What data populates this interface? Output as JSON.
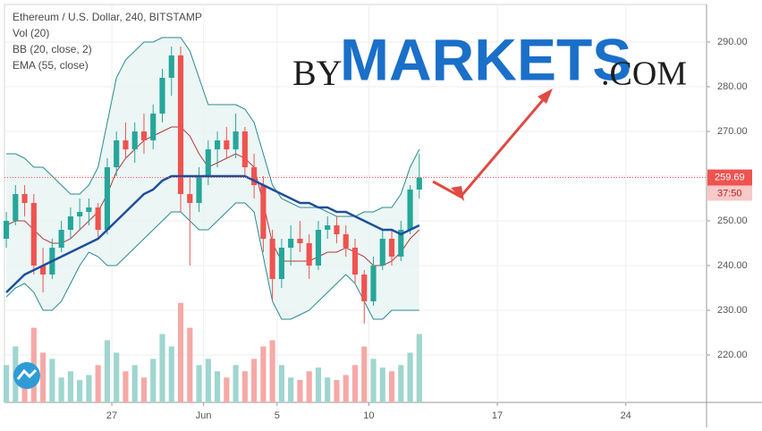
{
  "chart_data": {
    "type": "candlestick",
    "title": "Ethereum / U.S. Dollar, 240, BITSTAMP",
    "indicators": [
      "Vol (20)",
      "BB (20, close, 2)",
      "EMA (55, close)"
    ],
    "x": [
      21.25,
      21.75,
      22.25,
      22.75,
      23.25,
      23.75,
      24.25,
      24.75,
      25.25,
      25.75,
      26.25,
      26.75,
      27.25,
      27.75,
      28.25,
      28.75,
      29.25,
      29.75,
      30.25,
      30.75,
      31.25,
      31.75,
      32.25,
      32.75,
      33.25,
      33.75,
      34.25,
      34.75,
      35.25,
      35.75,
      36.25,
      36.75,
      37.25,
      37.75,
      38.25,
      38.75,
      39.25,
      39.75,
      40.25,
      40.75,
      41.25,
      41.75,
      42.25,
      42.75,
      43.25,
      43.75
    ],
    "open": [
      246,
      250,
      256,
      254,
      240,
      238,
      244,
      248,
      251,
      252,
      253,
      248,
      262,
      268,
      266,
      270,
      268,
      274,
      282,
      287,
      256,
      254,
      260,
      266,
      268,
      266,
      270,
      262,
      258,
      246,
      237,
      244,
      246,
      245,
      240,
      248,
      249,
      247,
      244,
      238,
      232,
      240,
      246,
      242,
      248,
      257
    ],
    "high": [
      252,
      258,
      258,
      256,
      244,
      246,
      250,
      253,
      255,
      255,
      254,
      264,
      270,
      272,
      272,
      274,
      276,
      284,
      289,
      289,
      260,
      262,
      268,
      270,
      271,
      274,
      271,
      265,
      260,
      248,
      246,
      249,
      250,
      247,
      250,
      251,
      251,
      249,
      246,
      239,
      242,
      248,
      248,
      250,
      258,
      265
    ],
    "low": [
      244,
      249,
      251,
      238,
      234,
      237,
      243,
      246,
      248,
      249,
      246,
      247,
      260,
      264,
      263,
      265,
      266,
      272,
      278,
      252,
      240,
      252,
      258,
      262,
      264,
      264,
      260,
      255,
      243,
      232,
      235,
      240,
      243,
      237,
      239,
      246,
      245,
      242,
      236,
      227,
      231,
      239,
      240,
      241,
      247,
      255
    ],
    "close": [
      250,
      256,
      254,
      240,
      238,
      244,
      248,
      251,
      252,
      253,
      248,
      262,
      268,
      266,
      270,
      268,
      274,
      282,
      287,
      256,
      254,
      260,
      266,
      268,
      266,
      270,
      262,
      258,
      246,
      237,
      244,
      246,
      245,
      240,
      248,
      249,
      247,
      244,
      238,
      232,
      240,
      246,
      242,
      248,
      257,
      259.69
    ],
    "volume": [
      30,
      45,
      25,
      60,
      40,
      35,
      20,
      25,
      18,
      22,
      30,
      50,
      40,
      25,
      30,
      20,
      35,
      55,
      45,
      80,
      60,
      30,
      35,
      25,
      20,
      30,
      25,
      35,
      45,
      50,
      30,
      20,
      18,
      25,
      28,
      20,
      18,
      22,
      30,
      45,
      35,
      28,
      25,
      30,
      40,
      55
    ],
    "vlim": [
      0,
      320
    ],
    "ema": [
      234,
      236,
      238,
      239,
      240,
      241,
      242,
      243,
      244,
      245,
      246,
      248,
      250,
      252,
      254,
      256,
      257,
      259,
      260,
      260,
      260,
      260,
      260,
      260,
      260,
      260,
      260,
      259,
      258,
      257,
      256,
      255,
      254,
      254,
      253,
      253,
      252,
      252,
      251,
      250,
      249,
      248,
      248,
      247,
      248,
      249
    ],
    "bb_upper": [
      265,
      265,
      264,
      262,
      262,
      260,
      258,
      256,
      256,
      258,
      262,
      272,
      282,
      286,
      288,
      290,
      290,
      291,
      291,
      291,
      288,
      282,
      276,
      276,
      276,
      276,
      275,
      272,
      265,
      258,
      255,
      254,
      253,
      253,
      253,
      252,
      251,
      251,
      251,
      252,
      252,
      253,
      253,
      256,
      262,
      266
    ],
    "bb_middle": [
      249,
      250,
      250,
      248,
      246,
      245,
      245,
      246,
      248,
      250,
      252,
      256,
      261,
      264,
      266,
      268,
      269,
      270,
      271,
      271,
      269,
      265,
      262,
      263,
      264,
      265,
      264,
      262,
      254,
      245,
      241,
      241,
      241,
      241,
      242,
      243,
      243,
      244,
      243,
      242,
      240,
      240,
      241,
      243,
      246,
      248
    ],
    "bb_lower": [
      233,
      235,
      236,
      234,
      230,
      230,
      232,
      236,
      240,
      243,
      242,
      240,
      240,
      242,
      244,
      246,
      248,
      250,
      252,
      252,
      250,
      248,
      248,
      250,
      252,
      254,
      254,
      252,
      242,
      232,
      228,
      228,
      229,
      230,
      232,
      234,
      236,
      238,
      236,
      232,
      228,
      228,
      230,
      230,
      230,
      230
    ],
    "up_color": "#26a69a",
    "down_color": "#ef5350",
    "up_volume_color": "#9fd6cf",
    "down_volume_color": "#f5a9a7",
    "ema_color": "#1f4e9c",
    "bb_color": "#2a8a8f",
    "bb_middle_color": "#b23a3a",
    "bb_fill": "#e6f4f3",
    "last_price": 259.69,
    "countdown": "37:50",
    "xlim": [
      21.15,
      59.4
    ],
    "xticks": [
      {
        "value": 27,
        "label": "27"
      },
      {
        "value": 32,
        "label": "Jun"
      },
      {
        "value": 36,
        "label": "5"
      },
      {
        "value": 41,
        "label": "10"
      },
      {
        "value": 48,
        "label": "17"
      },
      {
        "value": 55,
        "label": "24"
      }
    ],
    "ylim": [
      209.4,
      298.4
    ],
    "yticks": [
      {
        "value": 220,
        "label": "220.00"
      },
      {
        "value": 230,
        "label": "230.00"
      },
      {
        "value": 240,
        "label": "240.00"
      },
      {
        "value": 250,
        "label": "250.00"
      },
      {
        "value": 260,
        "label": "260.00"
      },
      {
        "value": 270,
        "label": "270.00"
      },
      {
        "value": 280,
        "label": "280.00"
      },
      {
        "value": 290,
        "label": "290.00"
      }
    ],
    "grid": true
  },
  "watermark": {
    "by": "BY",
    "markets": "MARKETS",
    "com": ".COM"
  }
}
